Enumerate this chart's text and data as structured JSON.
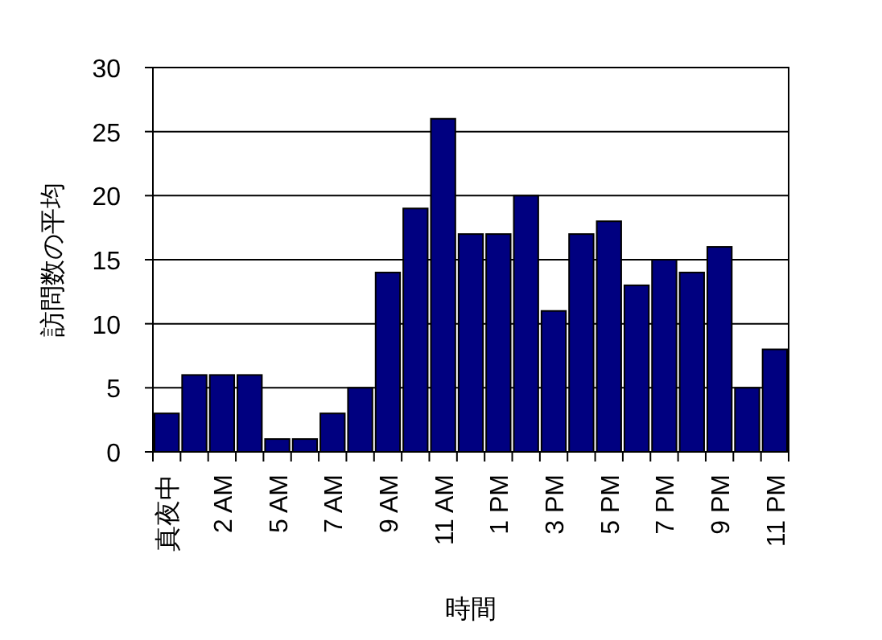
{
  "chart_data": {
    "type": "bar",
    "xlabel": "時間",
    "ylabel": "訪問数の平均",
    "categories": [
      "真夜中",
      null,
      "2 AM",
      null,
      "5 AM",
      null,
      "7 AM",
      null,
      "9 AM",
      null,
      "11 AM",
      null,
      "1 PM",
      null,
      "3 PM",
      null,
      "5 PM",
      null,
      "7 PM",
      null,
      "9 PM",
      null,
      "11 PM"
    ],
    "values": [
      3,
      6,
      6,
      6,
      1,
      1,
      3,
      5,
      14,
      19,
      26,
      17,
      17,
      20,
      11,
      17,
      18,
      13,
      15,
      14,
      16,
      5,
      8
    ],
    "color": "#000080",
    "ylim": [
      0,
      30
    ],
    "yticks": [
      0,
      5,
      10,
      15,
      20,
      25,
      30
    ],
    "grid": "y"
  }
}
